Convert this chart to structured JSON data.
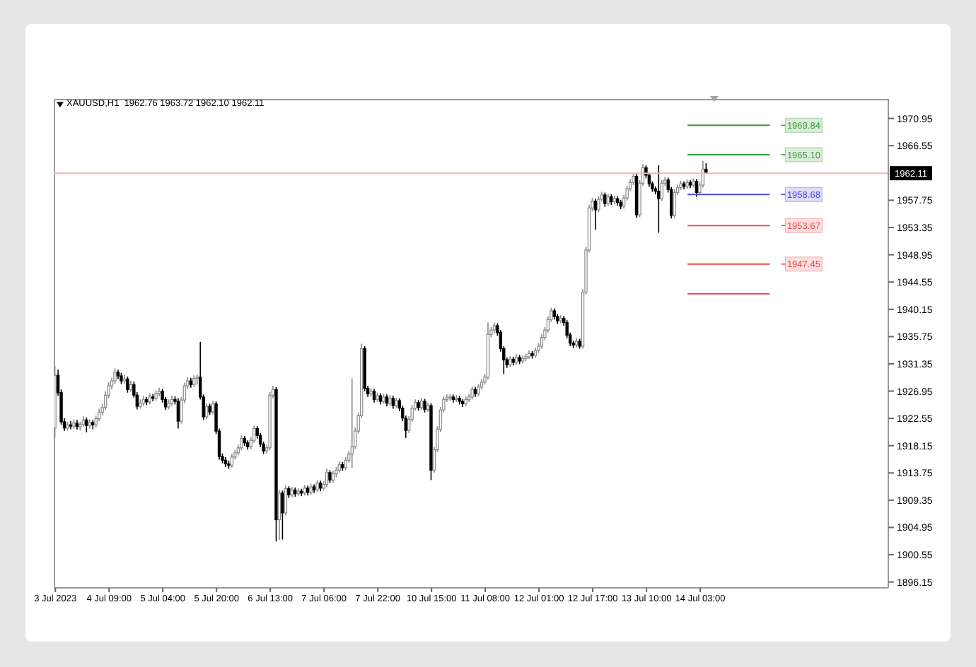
{
  "chart_data": {
    "type": "candlestick",
    "title": "XAUUSD,H1  1962.76 1963.72 1962.10 1962.11",
    "categories": [
      "3 Jul 2023",
      null,
      null,
      null,
      null,
      null,
      null,
      null,
      null,
      null,
      null,
      null,
      null,
      null,
      null,
      null,
      null,
      "4 Jul 09:00",
      null,
      null,
      null,
      null,
      null,
      null,
      null,
      null,
      null,
      null,
      null,
      null,
      null,
      null,
      null,
      null,
      "5 Jul 04:00",
      null,
      null,
      null,
      null,
      null,
      null,
      null,
      null,
      null,
      null,
      null,
      null,
      null,
      null,
      null,
      null,
      "5 Jul 20:00",
      null,
      null,
      null,
      null,
      null,
      null,
      null,
      null,
      null,
      null,
      null,
      null,
      null,
      null,
      null,
      null,
      "6 Jul 13:00",
      null,
      null,
      null,
      null,
      null,
      null,
      null,
      null,
      null,
      null,
      null,
      null,
      null,
      null,
      null,
      null,
      "7 Jul 06:00",
      null,
      null,
      null,
      null,
      null,
      null,
      null,
      null,
      null,
      null,
      null,
      null,
      null,
      null,
      null,
      null,
      "7 Jul 22:00",
      null,
      null,
      null,
      null,
      null,
      null,
      null,
      null,
      null,
      null,
      null,
      null,
      null,
      null,
      null,
      null,
      "10 Jul 15:00",
      null,
      null,
      null,
      null,
      null,
      null,
      null,
      null,
      null,
      null,
      null,
      null,
      null,
      null,
      null,
      null,
      "11 Jul 08:00",
      null,
      null,
      null,
      null,
      null,
      null,
      null,
      null,
      null,
      null,
      null,
      null,
      null,
      null,
      null,
      null,
      "12 Jul 01:00",
      null,
      null,
      null,
      null,
      null,
      null,
      null,
      null,
      null,
      null,
      null,
      null,
      null,
      null,
      null,
      null,
      "12 Jul 17:00",
      null,
      null,
      null,
      null,
      null,
      null,
      null,
      null,
      null,
      null,
      null,
      null,
      null,
      null,
      null,
      null,
      "13 Jul 10:00",
      null,
      null,
      null,
      null,
      null,
      null,
      null,
      null,
      null,
      null,
      null,
      null,
      null,
      null,
      null,
      null,
      "14 Jul 03:00",
      null,
      null,
      null,
      null,
      null,
      null,
      null,
      null,
      null,
      null,
      null,
      null,
      null,
      null,
      null,
      null,
      null,
      null,
      null,
      null,
      null,
      null,
      null,
      null,
      null,
      null,
      null,
      null,
      null,
      null,
      null,
      null,
      null,
      null,
      null,
      null,
      null,
      null,
      null,
      null,
      null,
      null,
      null,
      null,
      null,
      null,
      null,
      null,
      null,
      null,
      null,
      null,
      null,
      null,
      null,
      null,
      null,
      null,
      null
    ],
    "ohlc": [
      [
        1921.0,
        1931.0,
        1919.5,
        1929.5
      ],
      [
        1929.5,
        1930.4,
        1926.2,
        1926.7
      ],
      [
        1926.7,
        1927.2,
        1921.5,
        1922.0
      ],
      [
        1922.0,
        1922.6,
        1920.5,
        1921.0
      ],
      [
        1921.0,
        1922.0,
        1920.6,
        1921.5
      ],
      [
        1921.5,
        1922.1,
        1920.8,
        1921.3
      ],
      [
        1921.3,
        1922.4,
        1920.9,
        1921.8
      ],
      [
        1921.8,
        1922.3,
        1920.7,
        1921.2
      ],
      [
        1921.2,
        1922.0,
        1920.6,
        1921.6
      ],
      [
        1921.6,
        1922.9,
        1921.2,
        1922.3
      ],
      [
        1922.3,
        1922.7,
        1920.3,
        1921.4
      ],
      [
        1921.4,
        1922.4,
        1920.9,
        1921.9
      ],
      [
        1921.9,
        1922.3,
        1920.8,
        1921.5
      ],
      [
        1921.5,
        1923.0,
        1921.1,
        1922.5
      ],
      [
        1922.5,
        1924.1,
        1922.1,
        1923.5
      ],
      [
        1923.5,
        1924.9,
        1923.0,
        1924.3
      ],
      [
        1924.3,
        1926.9,
        1923.9,
        1926.3
      ],
      [
        1926.3,
        1928.4,
        1925.8,
        1927.8
      ],
      [
        1927.8,
        1929.1,
        1927.2,
        1928.6
      ],
      [
        1928.6,
        1930.6,
        1928.1,
        1930.0
      ],
      [
        1930.0,
        1930.4,
        1928.9,
        1929.4
      ],
      [
        1929.4,
        1929.9,
        1928.1,
        1928.6
      ],
      [
        1928.6,
        1929.6,
        1928.1,
        1928.9
      ],
      [
        1928.9,
        1929.3,
        1926.7,
        1927.2
      ],
      [
        1927.2,
        1928.6,
        1926.8,
        1928.0
      ],
      [
        1928.0,
        1928.5,
        1925.9,
        1926.3
      ],
      [
        1926.3,
        1926.8,
        1924.0,
        1924.5
      ],
      [
        1924.5,
        1925.6,
        1924.1,
        1925.0
      ],
      [
        1925.0,
        1926.2,
        1924.6,
        1925.6
      ],
      [
        1925.6,
        1926.0,
        1924.7,
        1925.2
      ],
      [
        1925.2,
        1926.6,
        1924.8,
        1926.0
      ],
      [
        1926.0,
        1926.5,
        1925.3,
        1925.8
      ],
      [
        1925.8,
        1927.1,
        1925.4,
        1926.6
      ],
      [
        1926.6,
        1927.5,
        1926.1,
        1926.9
      ],
      [
        1926.9,
        1927.3,
        1925.1,
        1925.6
      ],
      [
        1925.6,
        1926.0,
        1923.9,
        1924.4
      ],
      [
        1924.4,
        1925.6,
        1924.0,
        1925.0
      ],
      [
        1925.0,
        1926.2,
        1924.6,
        1925.6
      ],
      [
        1925.6,
        1926.1,
        1924.8,
        1925.3
      ],
      [
        1925.3,
        1925.8,
        1920.9,
        1922.1
      ],
      [
        1922.1,
        1926.0,
        1921.7,
        1925.5
      ],
      [
        1925.5,
        1928.3,
        1925.0,
        1927.8
      ],
      [
        1927.8,
        1929.2,
        1927.3,
        1928.6
      ],
      [
        1928.6,
        1929.1,
        1927.5,
        1928.0
      ],
      [
        1928.0,
        1929.5,
        1927.6,
        1929.0
      ],
      [
        1929.0,
        1929.6,
        1928.0,
        1929.2
      ],
      [
        1929.2,
        1934.9,
        1925.6,
        1926.0
      ],
      [
        1926.0,
        1926.4,
        1922.3,
        1922.8
      ],
      [
        1922.8,
        1925.0,
        1922.4,
        1924.5
      ],
      [
        1924.5,
        1924.9,
        1923.1,
        1923.6
      ],
      [
        1923.6,
        1925.4,
        1923.2,
        1924.9
      ],
      [
        1924.9,
        1925.3,
        1920.0,
        1920.5
      ],
      [
        1920.5,
        1920.9,
        1915.9,
        1916.4
      ],
      [
        1916.4,
        1916.9,
        1915.3,
        1915.8
      ],
      [
        1915.8,
        1916.3,
        1914.7,
        1915.2
      ],
      [
        1915.2,
        1915.7,
        1914.4,
        1915.0
      ],
      [
        1915.0,
        1916.8,
        1914.6,
        1916.3
      ],
      [
        1916.3,
        1917.5,
        1915.9,
        1917.0
      ],
      [
        1917.0,
        1918.3,
        1916.6,
        1917.8
      ],
      [
        1917.8,
        1919.8,
        1917.4,
        1919.3
      ],
      [
        1919.3,
        1919.7,
        1918.1,
        1918.6
      ],
      [
        1918.6,
        1919.0,
        1917.5,
        1918.0
      ],
      [
        1918.0,
        1919.5,
        1917.6,
        1919.0
      ],
      [
        1919.0,
        1921.4,
        1918.6,
        1920.9
      ],
      [
        1920.9,
        1921.3,
        1919.3,
        1919.8
      ],
      [
        1919.8,
        1920.2,
        1917.9,
        1918.4
      ],
      [
        1918.4,
        1918.8,
        1916.8,
        1917.3
      ],
      [
        1917.3,
        1918.3,
        1916.9,
        1917.8
      ],
      [
        1917.8,
        1926.8,
        1917.4,
        1926.3
      ],
      [
        1926.3,
        1927.8,
        1925.8,
        1927.2
      ],
      [
        1927.2,
        1927.6,
        1902.7,
        1906.2
      ],
      [
        1906.2,
        1911.0,
        1902.9,
        1910.5
      ],
      [
        1910.5,
        1910.9,
        1903.0,
        1907.3
      ],
      [
        1907.3,
        1911.7,
        1906.9,
        1911.2
      ],
      [
        1911.2,
        1911.6,
        1909.7,
        1910.2
      ],
      [
        1910.2,
        1911.5,
        1909.8,
        1911.0
      ],
      [
        1911.0,
        1911.4,
        1909.9,
        1910.4
      ],
      [
        1910.4,
        1911.3,
        1910.0,
        1910.8
      ],
      [
        1910.8,
        1911.2,
        1910.0,
        1910.5
      ],
      [
        1910.5,
        1911.8,
        1910.1,
        1911.3
      ],
      [
        1911.3,
        1911.7,
        1910.1,
        1910.6
      ],
      [
        1910.6,
        1912.0,
        1910.2,
        1911.5
      ],
      [
        1911.5,
        1911.9,
        1910.5,
        1911.0
      ],
      [
        1911.0,
        1912.6,
        1910.6,
        1912.1
      ],
      [
        1912.1,
        1912.5,
        1910.8,
        1911.3
      ],
      [
        1911.3,
        1912.4,
        1910.9,
        1911.9
      ],
      [
        1911.9,
        1914.4,
        1911.5,
        1913.8
      ],
      [
        1913.8,
        1914.2,
        1912.1,
        1912.6
      ],
      [
        1912.6,
        1914.1,
        1912.2,
        1913.6
      ],
      [
        1913.6,
        1914.7,
        1913.1,
        1914.2
      ],
      [
        1914.2,
        1915.6,
        1913.8,
        1915.1
      ],
      [
        1915.1,
        1915.5,
        1914.1,
        1914.6
      ],
      [
        1914.6,
        1916.3,
        1914.2,
        1915.8
      ],
      [
        1915.8,
        1917.3,
        1915.4,
        1916.8
      ],
      [
        1916.8,
        1929.0,
        1914.5,
        1918.0
      ],
      [
        1918.0,
        1921.0,
        1917.6,
        1920.5
      ],
      [
        1920.5,
        1923.5,
        1920.1,
        1923.0
      ],
      [
        1923.0,
        1934.6,
        1922.6,
        1933.8
      ],
      [
        1933.8,
        1934.2,
        1926.9,
        1927.4
      ],
      [
        1927.4,
        1927.8,
        1926.0,
        1926.5
      ],
      [
        1926.5,
        1927.4,
        1926.1,
        1926.9
      ],
      [
        1926.9,
        1927.3,
        1925.1,
        1925.6
      ],
      [
        1925.6,
        1926.7,
        1925.2,
        1926.2
      ],
      [
        1926.2,
        1926.6,
        1924.8,
        1925.3
      ],
      [
        1925.3,
        1926.5,
        1924.9,
        1926.0
      ],
      [
        1926.0,
        1926.4,
        1924.5,
        1925.0
      ],
      [
        1925.0,
        1926.3,
        1924.6,
        1925.8
      ],
      [
        1925.8,
        1926.2,
        1924.1,
        1924.6
      ],
      [
        1924.6,
        1925.9,
        1924.2,
        1925.4
      ],
      [
        1925.4,
        1925.8,
        1923.7,
        1924.2
      ],
      [
        1924.2,
        1924.6,
        1922.1,
        1922.6
      ],
      [
        1922.6,
        1923.0,
        1919.4,
        1920.6
      ],
      [
        1920.6,
        1922.9,
        1920.2,
        1922.4
      ],
      [
        1922.4,
        1924.7,
        1922.0,
        1924.2
      ],
      [
        1924.2,
        1925.6,
        1923.8,
        1925.1
      ],
      [
        1925.1,
        1925.5,
        1923.8,
        1924.3
      ],
      [
        1924.3,
        1925.8,
        1923.9,
        1925.3
      ],
      [
        1925.3,
        1925.7,
        1923.5,
        1924.0
      ],
      [
        1924.0,
        1925.1,
        1923.6,
        1924.6
      ],
      [
        1924.6,
        1925.0,
        1912.6,
        1914.2
      ],
      [
        1914.2,
        1918.0,
        1913.8,
        1917.5
      ],
      [
        1917.5,
        1921.3,
        1917.1,
        1920.8
      ],
      [
        1920.8,
        1924.4,
        1920.4,
        1923.9
      ],
      [
        1923.9,
        1926.1,
        1923.5,
        1925.6
      ],
      [
        1925.6,
        1926.4,
        1925.2,
        1925.9
      ],
      [
        1925.9,
        1926.5,
        1925.4,
        1926.0
      ],
      [
        1926.0,
        1926.4,
        1925.1,
        1925.6
      ],
      [
        1925.6,
        1926.3,
        1925.2,
        1925.8
      ],
      [
        1925.8,
        1926.2,
        1924.8,
        1925.3
      ],
      [
        1925.3,
        1925.7,
        1924.4,
        1924.9
      ],
      [
        1924.9,
        1926.1,
        1924.5,
        1925.6
      ],
      [
        1925.6,
        1926.5,
        1925.2,
        1926.0
      ],
      [
        1926.0,
        1927.7,
        1925.6,
        1927.2
      ],
      [
        1927.2,
        1927.6,
        1926.0,
        1926.5
      ],
      [
        1926.5,
        1928.1,
        1926.1,
        1927.6
      ],
      [
        1927.6,
        1928.9,
        1927.2,
        1928.4
      ],
      [
        1928.4,
        1929.7,
        1928.0,
        1929.2
      ],
      [
        1929.2,
        1938.0,
        1928.8,
        1936.1
      ],
      [
        1936.1,
        1937.3,
        1935.6,
        1936.8
      ],
      [
        1936.8,
        1938.0,
        1936.3,
        1937.5
      ],
      [
        1937.5,
        1937.9,
        1935.9,
        1936.4
      ],
      [
        1936.4,
        1936.8,
        1933.3,
        1933.8
      ],
      [
        1933.8,
        1934.2,
        1929.7,
        1932.0
      ],
      [
        1932.0,
        1932.4,
        1930.7,
        1931.2
      ],
      [
        1931.2,
        1932.6,
        1930.8,
        1932.1
      ],
      [
        1932.1,
        1932.5,
        1931.1,
        1931.6
      ],
      [
        1931.6,
        1932.9,
        1931.2,
        1932.4
      ],
      [
        1932.4,
        1932.8,
        1931.3,
        1931.8
      ],
      [
        1931.8,
        1932.7,
        1931.4,
        1932.2
      ],
      [
        1932.2,
        1933.0,
        1931.8,
        1932.5
      ],
      [
        1932.5,
        1933.5,
        1932.1,
        1933.0
      ],
      [
        1933.0,
        1933.4,
        1932.2,
        1932.7
      ],
      [
        1932.7,
        1934.0,
        1932.3,
        1933.5
      ],
      [
        1933.5,
        1934.7,
        1933.1,
        1934.2
      ],
      [
        1934.2,
        1936.1,
        1933.8,
        1935.6
      ],
      [
        1935.6,
        1937.3,
        1935.2,
        1936.8
      ],
      [
        1936.8,
        1939.0,
        1936.4,
        1938.5
      ],
      [
        1938.5,
        1940.4,
        1938.1,
        1939.9
      ],
      [
        1939.9,
        1940.3,
        1938.5,
        1939.0
      ],
      [
        1939.0,
        1939.4,
        1937.8,
        1938.3
      ],
      [
        1938.3,
        1939.2,
        1937.9,
        1938.7
      ],
      [
        1938.7,
        1939.1,
        1937.5,
        1938.0
      ],
      [
        1938.0,
        1938.4,
        1935.5,
        1936.0
      ],
      [
        1936.0,
        1936.4,
        1934.2,
        1934.7
      ],
      [
        1934.7,
        1935.1,
        1933.9,
        1934.4
      ],
      [
        1934.4,
        1935.5,
        1934.0,
        1935.0
      ],
      [
        1935.0,
        1935.4,
        1933.8,
        1934.2
      ],
      [
        1934.2,
        1943.4,
        1933.8,
        1942.9
      ],
      [
        1942.9,
        1950.2,
        1942.5,
        1949.7
      ],
      [
        1949.7,
        1957.0,
        1949.3,
        1956.5
      ],
      [
        1956.5,
        1958.1,
        1956.0,
        1957.6
      ],
      [
        1957.6,
        1958.0,
        1953.0,
        1956.2
      ],
      [
        1956.2,
        1958.4,
        1955.8,
        1957.9
      ],
      [
        1957.9,
        1959.1,
        1957.5,
        1958.6
      ],
      [
        1958.6,
        1959.0,
        1956.7,
        1957.2
      ],
      [
        1957.2,
        1958.8,
        1956.8,
        1958.3
      ],
      [
        1958.3,
        1958.7,
        1957.0,
        1957.5
      ],
      [
        1957.5,
        1958.5,
        1957.1,
        1958.0
      ],
      [
        1958.0,
        1958.4,
        1956.9,
        1957.4
      ],
      [
        1957.4,
        1957.8,
        1956.3,
        1956.8
      ],
      [
        1956.8,
        1958.6,
        1956.4,
        1958.1
      ],
      [
        1958.1,
        1960.1,
        1957.7,
        1959.6
      ],
      [
        1959.6,
        1961.1,
        1959.2,
        1960.6
      ],
      [
        1960.6,
        1962.1,
        1960.2,
        1961.6
      ],
      [
        1961.6,
        1962.0,
        1954.9,
        1955.4
      ],
      [
        1955.4,
        1961.0,
        1955.0,
        1960.5
      ],
      [
        1960.5,
        1963.6,
        1960.1,
        1963.0
      ],
      [
        1963.0,
        1963.4,
        1961.3,
        1961.8
      ],
      [
        1961.8,
        1962.2,
        1959.9,
        1960.4
      ],
      [
        1960.4,
        1960.8,
        1959.1,
        1959.6
      ],
      [
        1959.6,
        1960.0,
        1958.7,
        1959.2
      ],
      [
        1959.2,
        1963.4,
        1952.5,
        1958.0
      ],
      [
        1958.0,
        1961.0,
        1957.6,
        1960.5
      ],
      [
        1960.5,
        1961.5,
        1960.1,
        1961.0
      ],
      [
        1961.0,
        1961.4,
        1959.0,
        1959.5
      ],
      [
        1959.5,
        1959.9,
        1954.8,
        1955.3
      ],
      [
        1955.3,
        1959.5,
        1954.9,
        1959.0
      ],
      [
        1959.0,
        1960.3,
        1958.6,
        1959.8
      ],
      [
        1959.8,
        1960.9,
        1959.4,
        1960.4
      ],
      [
        1960.4,
        1960.8,
        1959.5,
        1960.0
      ],
      [
        1960.0,
        1961.1,
        1959.6,
        1960.6
      ],
      [
        1960.6,
        1961.0,
        1959.7,
        1960.2
      ],
      [
        1960.2,
        1961.3,
        1959.8,
        1960.8
      ],
      [
        1960.8,
        1961.2,
        1958.3,
        1959.0
      ],
      [
        1959.0,
        1960.7,
        1958.6,
        1960.2
      ],
      [
        1960.2,
        1964.1,
        1959.8,
        1962.76
      ],
      [
        1962.76,
        1963.72,
        1962.1,
        1962.11
      ],
      null,
      null,
      null,
      null,
      null,
      null,
      null,
      null,
      null,
      null,
      null,
      null,
      null,
      null,
      null,
      null,
      null,
      null,
      null,
      null,
      null,
      null,
      null,
      null,
      null,
      null,
      null,
      null,
      null,
      null,
      null,
      null,
      null,
      null,
      null,
      null,
      null,
      null,
      null,
      null,
      null,
      null,
      null,
      null,
      null,
      null,
      null,
      null,
      null,
      null,
      null,
      null,
      null,
      null,
      null,
      null,
      null
    ],
    "ylim": [
      1895.2,
      1974.1
    ],
    "yticks": [
      1896.15,
      1900.55,
      1904.95,
      1909.35,
      1913.75,
      1918.15,
      1922.55,
      1926.95,
      1931.35,
      1935.75,
      1940.15,
      1944.55,
      1948.95,
      1953.35,
      1957.75,
      1966.55,
      1970.95
    ],
    "ref_lines": [
      {
        "axis": "y",
        "value": 1962.11,
        "label": "1962.11",
        "color": "#f2b8a6"
      },
      {
        "axis": "y",
        "value": 1969.84,
        "label": "1969.84",
        "color": "#3c9a3c"
      },
      {
        "axis": "y",
        "value": 1965.1,
        "label": "1965.10",
        "color": "#3c9a3c"
      },
      {
        "axis": "y",
        "value": 1958.68,
        "label": "1958.68",
        "color": "#4a4ae0"
      },
      {
        "axis": "y",
        "value": 1953.67,
        "label": "1953.67",
        "color": "#f04848"
      },
      {
        "axis": "y",
        "value": 1947.45,
        "label": "1947.45",
        "color": "#f04848"
      },
      {
        "axis": "y",
        "value": 1942.67,
        "label": null,
        "color": "#f04848"
      }
    ]
  }
}
